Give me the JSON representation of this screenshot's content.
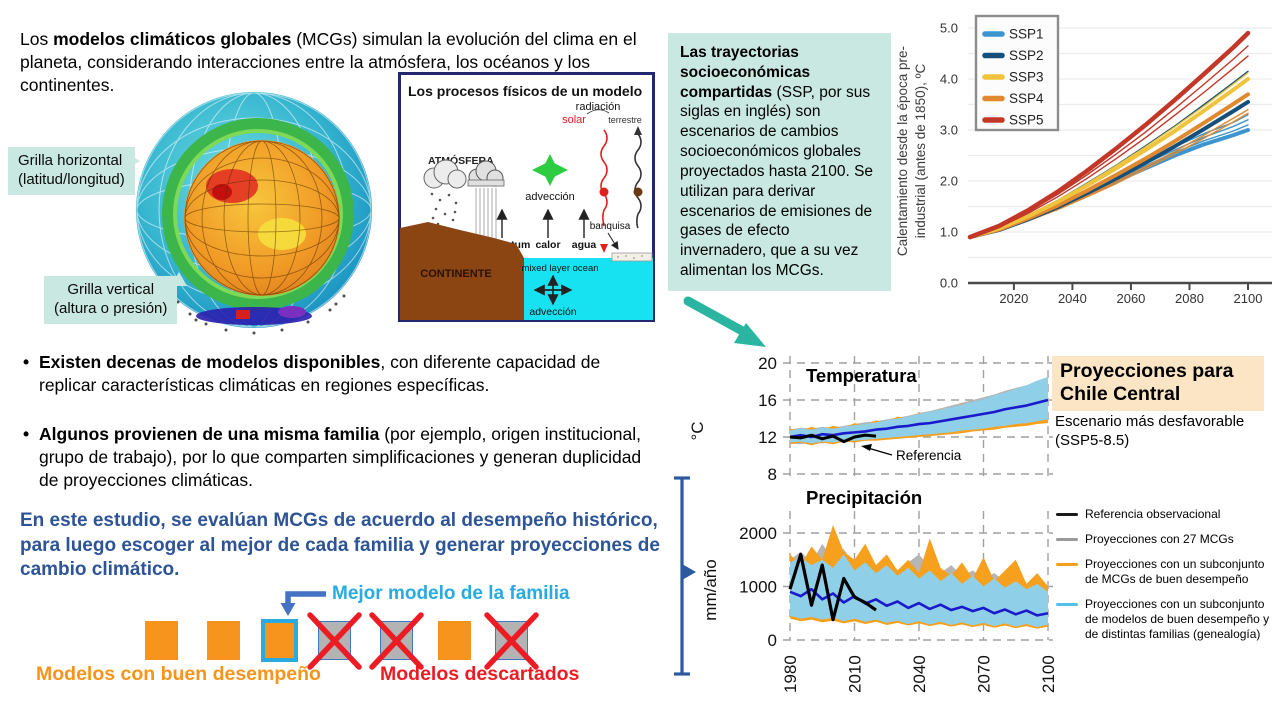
{
  "intro": {
    "prefix": "Los ",
    "bold": "modelos climáticos globales",
    "rest": " (MCGs) simulan la evolución del clima en el planeta, considerando interacciones entre la atmósfera, los océanos y los continentes."
  },
  "globe": {
    "horizontal_label": "Grilla horizontal\n(latitud/longitud)",
    "vertical_label": "Grilla vertical\n(altura o presión)"
  },
  "process_diagram": {
    "title": "Los procesos físicos de un modelo",
    "labels": {
      "radiacion": "radiación",
      "solar": "solar",
      "terrestre": "terrestre",
      "atmosfera": "ATMÓSFERA",
      "adveccion_top": "advección",
      "momentum": "momentum",
      "calor": "calor",
      "agua": "agua",
      "banquisa": "banquisa",
      "continente": "CONTINENTE",
      "mixed_layer": "mixed layer ocean",
      "adveccion_bottom": "advección"
    }
  },
  "ssp_box": {
    "bold": "Las trayectorias socioeconómicas compartidas",
    "rest": " (SSP, por sus siglas en inglés) son escenarios de cambios socioeconómicos globales proyectados hasta 2100. Se utilizan para derivar escenarios de emisiones de gases de efecto invernadero, que a su vez alimentan los MCGs."
  },
  "bullets": [
    {
      "bold": "Existen decenas de modelos disponibles",
      "rest": ", con diferente capacidad de replicar características climáticas en regiones específicas."
    },
    {
      "bold": "Algunos provienen de una misma familia",
      "rest": " (por ejemplo, origen institucional, grupo de trabajo), por lo que comparten simplificaciones y generan duplicidad de proyecciones climáticas."
    }
  ],
  "study_statement": "En este estudio, se evalúan MCGs de acuerdo al desempeño histórico, para luego escoger al mejor de cada familia y generar proyecciones de cambio climático.",
  "family_diagram": {
    "best_label": "Mejor modelo de la familia",
    "good_label": "Modelos con buen desempeño",
    "discarded_label": "Modelos descartados",
    "squares": [
      "good",
      "good",
      "best",
      "discarded",
      "discarded",
      "good",
      "discarded"
    ],
    "colors": {
      "good": "#F7941D",
      "discarded_fill": "#b3b3b3",
      "discarded_border": "#4472C4",
      "best_border": "#29ABE2",
      "cross": "#ED1C24",
      "arrow": "#4472C4"
    }
  },
  "projections": {
    "title": "Proyecciones para Chile Central",
    "subtitle": "Escenario más desfavorable (SSP5-8.5)",
    "legend": [
      {
        "color": "#1a1a1a",
        "label": "Referencia observacional"
      },
      {
        "color": "#9a9a9a",
        "label": "Proyecciones con 27 MCGs"
      },
      {
        "color": "#f6a01d",
        "label": "Proyecciones con un subconjunto de MCGs de buen desempeño"
      },
      {
        "color": "#53c0e8",
        "label": "Proyecciones con un subconjunto de modelos de buen desempeño y de distintas familias (genealogía)"
      }
    ]
  },
  "colors": {
    "teal_box": "#c9e8e2",
    "teal_arrow": "#2bb5a1",
    "blue_bracket": "#2d5a9e",
    "study_text": "#2d5496"
  },
  "chart_data": [
    {
      "id": "warming",
      "type": "line",
      "ylabel": "Calentamiento desde la época pre-\nindustrial (antes de 1850), ºC",
      "xlim": [
        2005,
        2103
      ],
      "ylim": [
        0,
        5.3
      ],
      "xticks": [
        2020,
        2040,
        2060,
        2080,
        2100
      ],
      "yticks": [
        0.0,
        1.0,
        2.0,
        3.0,
        4.0,
        5.0
      ],
      "grid": "horizontal, every 0.5",
      "legend_position": "upper left",
      "legend": [
        {
          "label": "SSP1",
          "color": "#3d95cf"
        },
        {
          "label": "SSP2",
          "color": "#16507a"
        },
        {
          "label": "SSP3",
          "color": "#f0c33c"
        },
        {
          "label": "SSP4",
          "color": "#e1892f"
        },
        {
          "label": "SSP5",
          "color": "#c23728"
        }
      ],
      "years": [
        2005,
        2015,
        2025,
        2035,
        2045,
        2055,
        2065,
        2075,
        2085,
        2095,
        2100
      ],
      "series": [
        {
          "name": "SSP1 member a",
          "color": "#3d95cf",
          "width": 1.4,
          "values": [
            0.9,
            1.05,
            1.26,
            1.52,
            1.78,
            2.04,
            2.3,
            2.56,
            2.79,
            2.98,
            3.1
          ]
        },
        {
          "name": "SSP1 member b",
          "color": "#3d95cf",
          "width": 1.4,
          "values": [
            0.9,
            1.06,
            1.27,
            1.53,
            1.8,
            2.07,
            2.34,
            2.61,
            2.86,
            3.07,
            3.2
          ]
        },
        {
          "name": "SSP1 member c",
          "color": "#3d95cf",
          "width": 1.4,
          "values": [
            0.9,
            1.06,
            1.28,
            1.55,
            1.83,
            2.11,
            2.39,
            2.67,
            2.93,
            3.15,
            3.3
          ]
        },
        {
          "name": "SSP1",
          "color": "#3d95cf",
          "width": 4,
          "values": [
            0.9,
            1.05,
            1.25,
            1.5,
            1.75,
            2.0,
            2.25,
            2.5,
            2.72,
            2.9,
            3.0
          ]
        },
        {
          "name": "SSP4 member a",
          "color": "#e1892f",
          "width": 1.4,
          "values": [
            0.9,
            1.04,
            1.23,
            1.46,
            1.71,
            1.99,
            2.28,
            2.58,
            2.9,
            3.23,
            3.4
          ]
        },
        {
          "name": "SSP4 member b",
          "color": "#e1892f",
          "width": 1.4,
          "values": [
            0.9,
            1.03,
            1.22,
            1.44,
            1.69,
            1.95,
            2.24,
            2.53,
            2.84,
            3.16,
            3.33
          ]
        },
        {
          "name": "SSP2 member a",
          "color": "#16507a",
          "width": 1.4,
          "values": [
            0.9,
            1.08,
            1.33,
            1.62,
            1.96,
            2.31,
            2.69,
            3.08,
            3.5,
            3.93,
            4.15
          ]
        },
        {
          "name": "SSP2",
          "color": "#16507a",
          "width": 4,
          "values": [
            0.9,
            1.04,
            1.25,
            1.49,
            1.76,
            2.05,
            2.36,
            2.68,
            3.02,
            3.37,
            3.55
          ]
        },
        {
          "name": "SSP4",
          "color": "#e1892f",
          "width": 4,
          "values": [
            0.9,
            1.05,
            1.27,
            1.52,
            1.81,
            2.12,
            2.44,
            2.78,
            3.14,
            3.51,
            3.7
          ]
        },
        {
          "name": "SSP3 member a",
          "color": "#f0c33c",
          "width": 1.4,
          "values": [
            0.9,
            1.07,
            1.33,
            1.62,
            1.95,
            2.3,
            2.67,
            3.06,
            3.47,
            3.9,
            4.12
          ]
        },
        {
          "name": "SSP3",
          "color": "#f0c33c",
          "width": 4,
          "values": [
            0.9,
            1.07,
            1.31,
            1.59,
            1.91,
            2.25,
            2.61,
            2.98,
            3.38,
            3.79,
            4.0
          ]
        },
        {
          "name": "SSP5 member b",
          "color": "#c23728",
          "width": 1.4,
          "values": [
            0.9,
            1.09,
            1.37,
            1.69,
            2.05,
            2.44,
            2.85,
            3.29,
            3.74,
            4.21,
            4.45
          ]
        },
        {
          "name": "SSP5 member a",
          "color": "#c23728",
          "width": 1.4,
          "values": [
            0.9,
            1.1,
            1.4,
            1.74,
            2.12,
            2.53,
            2.96,
            3.42,
            3.9,
            4.39,
            4.65
          ]
        },
        {
          "name": "SSP5",
          "color": "#c23728",
          "width": 4.5,
          "values": [
            0.9,
            1.12,
            1.43,
            1.79,
            2.2,
            2.64,
            3.1,
            3.59,
            4.1,
            4.62,
            4.9
          ]
        }
      ]
    },
    {
      "id": "temperatura",
      "type": "line+band",
      "title": "Temperatura",
      "ylabel": "°C",
      "annotation": "Referencia",
      "yticks": [
        8,
        12,
        16,
        20
      ],
      "xticks": [
        1980,
        2010,
        2040,
        2070,
        2100
      ],
      "grid": "dashed both axes",
      "years": [
        1980,
        1985,
        1990,
        1995,
        2000,
        2005,
        2010,
        2015,
        2020,
        2025,
        2030,
        2035,
        2040,
        2045,
        2050,
        2055,
        2060,
        2065,
        2070,
        2075,
        2080,
        2085,
        2090,
        2095,
        2100
      ],
      "bands": [
        {
          "name": "27 MCGs",
          "color": "#b5b5b5",
          "lo": [
            11.3,
            11.2,
            11.4,
            11.3,
            11.5,
            11.4,
            11.5,
            11.6,
            11.7,
            11.8,
            11.9,
            12.0,
            12.1,
            12.2,
            12.3,
            12.4,
            12.5,
            12.7,
            12.8,
            12.9,
            13.1,
            13.2,
            13.4,
            13.5,
            13.7
          ],
          "hi": [
            12.8,
            13.0,
            12.9,
            13.1,
            13.0,
            13.2,
            13.4,
            13.6,
            13.7,
            13.9,
            14.1,
            14.3,
            14.6,
            14.8,
            15.1,
            15.4,
            15.7,
            16.0,
            16.3,
            16.6,
            17.0,
            17.3,
            17.6,
            17.9,
            18.1
          ]
        },
        {
          "name": "subconjunto buen desempeño",
          "color": "#f6a01d",
          "lo": [
            11.2,
            11.4,
            11.1,
            11.4,
            11.2,
            11.5,
            11.4,
            11.6,
            11.6,
            11.7,
            11.8,
            11.9,
            12.0,
            12.1,
            12.2,
            12.3,
            12.4,
            12.6,
            12.7,
            12.8,
            13.0,
            13.1,
            13.2,
            13.4,
            13.5
          ],
          "hi": [
            12.9,
            12.7,
            13.1,
            12.8,
            13.2,
            13.0,
            13.5,
            13.3,
            13.8,
            13.6,
            14.2,
            14.0,
            14.6,
            14.4,
            15.1,
            14.8,
            15.6,
            15.3,
            16.0,
            15.7,
            16.5,
            16.2,
            17.0,
            16.6,
            17.2
          ]
        },
        {
          "name": "subconjunto genealogía",
          "color": "#8fd0e8",
          "lo": [
            11.4,
            11.5,
            11.3,
            11.5,
            11.4,
            11.6,
            11.6,
            11.7,
            11.8,
            11.9,
            12.0,
            12.1,
            12.2,
            12.3,
            12.4,
            12.5,
            12.7,
            12.8,
            12.9,
            13.1,
            13.2,
            13.4,
            13.5,
            13.7,
            13.9
          ],
          "hi": [
            12.7,
            12.9,
            12.8,
            13.0,
            12.9,
            13.1,
            13.3,
            13.4,
            13.6,
            13.8,
            14.0,
            14.2,
            14.5,
            14.7,
            15.0,
            15.2,
            15.5,
            15.8,
            16.1,
            16.5,
            16.8,
            17.2,
            17.6,
            18.1,
            18.5
          ]
        }
      ],
      "lines": [
        {
          "name": "proyección media",
          "color": "#1a1acc",
          "width": 2.6,
          "values": [
            12.0,
            12.2,
            12.0,
            12.3,
            12.2,
            12.4,
            12.5,
            12.6,
            12.8,
            12.9,
            13.1,
            13.2,
            13.4,
            13.5,
            13.7,
            13.9,
            14.1,
            14.3,
            14.5,
            14.7,
            15.0,
            15.2,
            15.4,
            15.7,
            16.0
          ]
        },
        {
          "name": "referencia observacional",
          "color": "#000000",
          "width": 3,
          "years": [
            1980,
            1985,
            1990,
            1995,
            2000,
            2005,
            2010,
            2015,
            2020
          ],
          "values": [
            12.0,
            11.9,
            12.2,
            11.8,
            12.1,
            11.5,
            12.0,
            12.2,
            12.1
          ]
        }
      ]
    },
    {
      "id": "precipitacion",
      "type": "line+band",
      "title": "Precipitación",
      "ylabel": "mm/año",
      "yticks": [
        0,
        1000,
        2000
      ],
      "xticks": [
        1980,
        2010,
        2040,
        2070,
        2100
      ],
      "grid": "dashed both axes",
      "years": [
        1980,
        1985,
        1990,
        1995,
        2000,
        2005,
        2010,
        2015,
        2020,
        2025,
        2030,
        2035,
        2040,
        2045,
        2050,
        2055,
        2060,
        2065,
        2070,
        2075,
        2080,
        2085,
        2090,
        2095,
        2100
      ],
      "bands": [
        {
          "name": "27 MCGs",
          "color": "#b5b5b5",
          "lo": [
            420,
            380,
            400,
            350,
            390,
            330,
            370,
            320,
            350,
            300,
            340,
            290,
            330,
            280,
            320,
            270,
            310,
            260,
            300,
            250,
            290,
            240,
            280,
            230,
            270
          ],
          "hi": [
            1500,
            1650,
            1450,
            1800,
            1500,
            1700,
            1400,
            1550,
            1350,
            1500,
            1300,
            1450,
            1600,
            1350,
            1250,
            1400,
            1200,
            1300,
            1150,
            1250,
            1100,
            1200,
            1050,
            1150,
            1000
          ]
        },
        {
          "name": "subconjunto buen desempeño",
          "color": "#f6a01d",
          "lo": [
            400,
            350,
            380,
            330,
            360,
            310,
            350,
            300,
            340,
            280,
            320,
            270,
            310,
            260,
            300,
            250,
            290,
            240,
            280,
            230,
            270,
            220,
            260,
            210,
            250
          ],
          "hi": [
            1600,
            1400,
            1750,
            1500,
            2150,
            1650,
            1500,
            1800,
            1400,
            1600,
            1300,
            1500,
            1250,
            1900,
            1350,
            1200,
            1450,
            1150,
            1550,
            1100,
            1300,
            1500,
            1050,
            1250,
            1000
          ]
        },
        {
          "name": "subconjunto genealogía",
          "color": "#8fd0e8",
          "lo": [
            450,
            400,
            430,
            380,
            420,
            350,
            400,
            340,
            380,
            320,
            360,
            300,
            350,
            290,
            340,
            280,
            330,
            270,
            320,
            260,
            310,
            250,
            300,
            240,
            290
          ],
          "hi": [
            1450,
            1550,
            1400,
            1500,
            1350,
            1600,
            1300,
            1450,
            1250,
            1400,
            1200,
            1350,
            1150,
            1300,
            1100,
            1250,
            1050,
            1200,
            1000,
            1150,
            980,
            1100,
            950,
            1050,
            900
          ]
        }
      ],
      "lines": [
        {
          "name": "proyección media",
          "color": "#1a1acc",
          "width": 2.6,
          "values": [
            900,
            820,
            950,
            760,
            870,
            700,
            820,
            680,
            760,
            640,
            720,
            600,
            690,
            580,
            660,
            560,
            620,
            540,
            600,
            500,
            570,
            480,
            550,
            460,
            500
          ]
        },
        {
          "name": "referencia observacional",
          "color": "#000000",
          "width": 3.2,
          "years": [
            1980,
            1985,
            1990,
            1995,
            2000,
            2005,
            2010,
            2015,
            2020
          ],
          "values": [
            950,
            1600,
            650,
            1400,
            380,
            1150,
            800,
            700,
            560
          ]
        }
      ]
    }
  ]
}
